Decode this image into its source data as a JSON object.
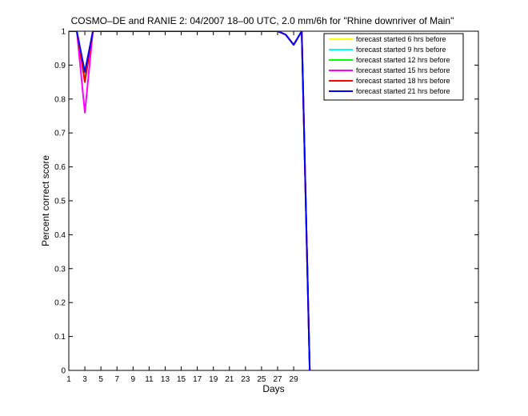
{
  "chart_data": {
    "type": "line",
    "title": "COSMO–DE and RANIE 2: 04/2007 18–00 UTC, 2.0 mm/6h for \"Rhine downriver of Main\"",
    "xlabel": "Days",
    "ylabel": "Percent correct score",
    "xlim": [
      1,
      52
    ],
    "ylim": [
      0,
      1
    ],
    "xticks": [
      "1",
      "3",
      "5",
      "7",
      "9",
      "11",
      "13",
      "15",
      "17",
      "19",
      "21",
      "23",
      "25",
      "27",
      "29"
    ],
    "yticks": [
      "0",
      "0.1",
      "0.2",
      "0.3",
      "0.4",
      "0.5",
      "0.6",
      "0.7",
      "0.8",
      "0.9",
      "1"
    ],
    "grid": false,
    "legend_position": "top-right",
    "series": [
      {
        "name": "forecast started 6 hrs before",
        "color": "#ffff00",
        "points": [
          [
            1,
            1
          ],
          [
            2,
            1
          ],
          [
            3,
            0.87
          ],
          [
            4,
            1
          ],
          [
            5,
            1
          ],
          [
            6,
            1
          ],
          [
            7,
            1
          ],
          [
            8,
            1
          ],
          [
            9,
            1
          ],
          [
            10,
            1
          ],
          [
            11,
            1
          ],
          [
            12,
            1
          ],
          [
            13,
            1
          ],
          [
            14,
            1
          ],
          [
            15,
            1
          ],
          [
            16,
            1
          ],
          [
            17,
            1
          ],
          [
            18,
            1
          ],
          [
            19,
            1
          ],
          [
            20,
            1
          ],
          [
            21,
            1
          ],
          [
            22,
            1
          ],
          [
            23,
            1
          ],
          [
            24,
            1
          ],
          [
            25,
            1
          ],
          [
            26,
            1
          ],
          [
            27,
            1
          ],
          [
            28,
            0.99
          ],
          [
            29,
            0.96
          ],
          [
            30,
            1
          ],
          [
            31,
            0
          ]
        ]
      },
      {
        "name": "forecast started 9 hrs before",
        "color": "#00ffff",
        "points": [
          [
            1,
            1
          ],
          [
            2,
            1
          ],
          [
            3,
            0.87
          ],
          [
            4,
            1
          ],
          [
            5,
            1
          ],
          [
            6,
            1
          ],
          [
            7,
            1
          ],
          [
            8,
            1
          ],
          [
            9,
            1
          ],
          [
            10,
            1
          ],
          [
            11,
            1
          ],
          [
            12,
            1
          ],
          [
            13,
            1
          ],
          [
            14,
            1
          ],
          [
            15,
            1
          ],
          [
            16,
            1
          ],
          [
            17,
            1
          ],
          [
            18,
            1
          ],
          [
            19,
            1
          ],
          [
            20,
            1
          ],
          [
            21,
            1
          ],
          [
            22,
            1
          ],
          [
            23,
            1
          ],
          [
            24,
            1
          ],
          [
            25,
            1
          ],
          [
            26,
            1
          ],
          [
            27,
            1
          ],
          [
            28,
            0.99
          ],
          [
            29,
            0.96
          ],
          [
            30,
            1
          ],
          [
            31,
            0
          ]
        ]
      },
      {
        "name": "forecast started 12 hrs before",
        "color": "#00ff00",
        "points": [
          [
            1,
            1
          ],
          [
            2,
            1
          ],
          [
            3,
            0.86
          ],
          [
            4,
            1
          ],
          [
            5,
            1
          ],
          [
            6,
            1
          ],
          [
            7,
            1
          ],
          [
            8,
            1
          ],
          [
            9,
            1
          ],
          [
            10,
            1
          ],
          [
            11,
            1
          ],
          [
            12,
            1
          ],
          [
            13,
            1
          ],
          [
            14,
            1
          ],
          [
            15,
            1
          ],
          [
            16,
            1
          ],
          [
            17,
            1
          ],
          [
            18,
            1
          ],
          [
            19,
            1
          ],
          [
            20,
            1
          ],
          [
            21,
            1
          ],
          [
            22,
            1
          ],
          [
            23,
            1
          ],
          [
            24,
            1
          ],
          [
            25,
            1
          ],
          [
            26,
            1
          ],
          [
            27,
            1
          ],
          [
            28,
            0.99
          ],
          [
            29,
            0.96
          ],
          [
            30,
            1
          ],
          [
            31,
            0
          ]
        ]
      },
      {
        "name": "forecast started 15 hrs before",
        "color": "#ff00ff",
        "points": [
          [
            1,
            1
          ],
          [
            2,
            1
          ],
          [
            3,
            0.76
          ],
          [
            4,
            1
          ],
          [
            5,
            1
          ],
          [
            6,
            1
          ],
          [
            7,
            1
          ],
          [
            8,
            1
          ],
          [
            9,
            1
          ],
          [
            10,
            1
          ],
          [
            11,
            1
          ],
          [
            12,
            1
          ],
          [
            13,
            1
          ],
          [
            14,
            1
          ],
          [
            15,
            1
          ],
          [
            16,
            1
          ],
          [
            17,
            1
          ],
          [
            18,
            1
          ],
          [
            19,
            1
          ],
          [
            20,
            1
          ],
          [
            21,
            1
          ],
          [
            22,
            1
          ],
          [
            23,
            1
          ],
          [
            24,
            1
          ],
          [
            25,
            1
          ],
          [
            26,
            1
          ],
          [
            27,
            1
          ],
          [
            28,
            0.99
          ],
          [
            29,
            0.96
          ],
          [
            30,
            1
          ],
          [
            31,
            0
          ]
        ]
      },
      {
        "name": "forecast started 18 hrs before",
        "color": "#ff0000",
        "points": [
          [
            1,
            1
          ],
          [
            2,
            1
          ],
          [
            3,
            0.85
          ],
          [
            4,
            1
          ],
          [
            5,
            1
          ],
          [
            6,
            1
          ],
          [
            7,
            1
          ],
          [
            8,
            1
          ],
          [
            9,
            1
          ],
          [
            10,
            1
          ],
          [
            11,
            1
          ],
          [
            12,
            1
          ],
          [
            13,
            1
          ],
          [
            14,
            1
          ],
          [
            15,
            1
          ],
          [
            16,
            1
          ],
          [
            17,
            1
          ],
          [
            18,
            1
          ],
          [
            19,
            1
          ],
          [
            20,
            1
          ],
          [
            21,
            1
          ],
          [
            22,
            1
          ],
          [
            23,
            1
          ],
          [
            24,
            1
          ],
          [
            25,
            1
          ],
          [
            26,
            1
          ],
          [
            27,
            1
          ],
          [
            28,
            0.99
          ],
          [
            29,
            0.96
          ],
          [
            30,
            1
          ],
          [
            31,
            0
          ]
        ]
      },
      {
        "name": "forecast started 21 hrs before",
        "color": "#0000ff",
        "points": [
          [
            1,
            1
          ],
          [
            2,
            1
          ],
          [
            3,
            0.88
          ],
          [
            4,
            1
          ],
          [
            5,
            1
          ],
          [
            6,
            1
          ],
          [
            7,
            1
          ],
          [
            8,
            1
          ],
          [
            9,
            1
          ],
          [
            10,
            1
          ],
          [
            11,
            1
          ],
          [
            12,
            1
          ],
          [
            13,
            1
          ],
          [
            14,
            1
          ],
          [
            15,
            1
          ],
          [
            16,
            1
          ],
          [
            17,
            1
          ],
          [
            18,
            1
          ],
          [
            19,
            1
          ],
          [
            20,
            1
          ],
          [
            21,
            1
          ],
          [
            22,
            1
          ],
          [
            23,
            1
          ],
          [
            24,
            1
          ],
          [
            25,
            1
          ],
          [
            26,
            1
          ],
          [
            27,
            1
          ],
          [
            28,
            0.99
          ],
          [
            29,
            0.96
          ],
          [
            30,
            1
          ],
          [
            31,
            0
          ]
        ]
      }
    ]
  }
}
